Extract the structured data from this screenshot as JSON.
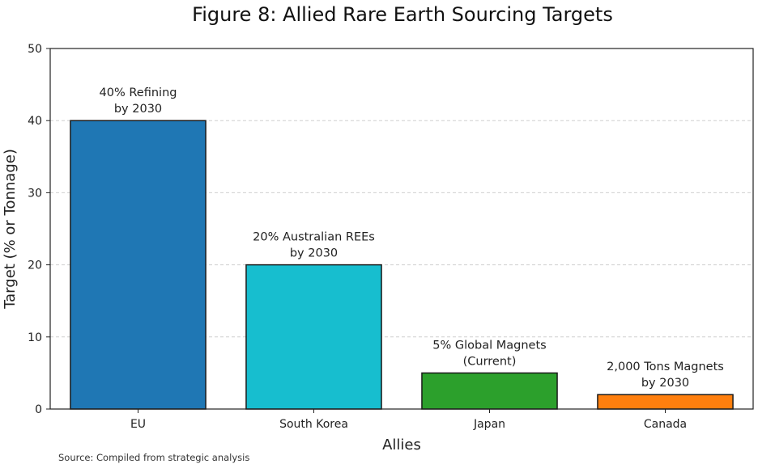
{
  "chart_data": {
    "type": "bar",
    "title": "Figure 8: Allied Rare Earth Sourcing Targets",
    "xlabel": "Allies",
    "ylabel": "Target (% or Tonnage)",
    "categories": [
      "EU",
      "South Korea",
      "Japan",
      "Canada"
    ],
    "values": [
      40,
      20,
      5,
      2
    ],
    "colors": [
      "#1f77b4",
      "#17becf",
      "#2ca02c",
      "#ff7f0e"
    ],
    "annotations": [
      [
        "40% Refining",
        "by 2030"
      ],
      [
        "20% Australian REEs",
        "by 2030"
      ],
      [
        "5% Global Magnets",
        "(Current)"
      ],
      [
        "2,000 Tons Magnets",
        "by 2030"
      ]
    ],
    "ylim": [
      0,
      50
    ],
    "yticks": [
      0,
      10,
      20,
      30,
      40,
      50
    ],
    "grid": "y-dashed",
    "source": "Source: Compiled from strategic analysis"
  }
}
